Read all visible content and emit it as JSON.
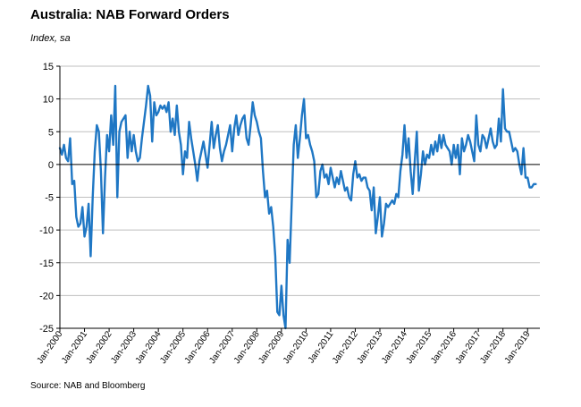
{
  "title": "Australia: NAB Forward Orders",
  "subtitle": "Index, sa",
  "source": "Source: NAB and Bloomberg",
  "colors": {
    "line": "#1f77c4",
    "grid": "#bfbfbf",
    "axis": "#000000"
  },
  "chart_data": {
    "type": "line",
    "title": "Australia: NAB Forward Orders",
    "ylabel": "Index, sa",
    "xlabel": "",
    "ylim": [
      -25,
      15
    ],
    "yticks": [
      15,
      10,
      5,
      0,
      -5,
      -10,
      -15,
      -20,
      -25
    ],
    "grid": true,
    "legend": "none",
    "x_tick_labels": [
      "Jan-2000",
      "Jan-2001",
      "Jan-2002",
      "Jan-2003",
      "Jan-2004",
      "Jan-2005",
      "Jan-2006",
      "Jan-2007",
      "Jan-2008",
      "Jan-2009",
      "Jan-2010",
      "Jan-2011",
      "Jan-2012",
      "Jan-2013",
      "Jan-2014",
      "Jan-2015",
      "Jan-2016",
      "Jan-2017",
      "Jan-2018",
      "Jan-2019"
    ],
    "x_start": "Jan-2000",
    "x_end": "Jun-2019",
    "frequency": "monthly",
    "series": [
      {
        "name": "",
        "values": [
          2.5,
          1.5,
          3,
          1,
          0.5,
          4,
          -3,
          -2.5,
          -8,
          -9.5,
          -9,
          -6.5,
          -11,
          -9.5,
          -6,
          -14,
          -5,
          2,
          6,
          5,
          -1,
          -10.5,
          -2,
          4.5,
          2,
          7.5,
          3,
          12,
          -5,
          5,
          6.5,
          7,
          7.5,
          1,
          5,
          2,
          4.5,
          2,
          0.5,
          1,
          4,
          6.5,
          9,
          12,
          10.5,
          3.5,
          9.5,
          7.5,
          8,
          9,
          8.5,
          9,
          8,
          9.5,
          5,
          7,
          4.5,
          9,
          5,
          3,
          -1.5,
          2,
          1,
          6.5,
          4,
          2,
          0,
          -2.5,
          0.5,
          2,
          3.5,
          1.5,
          -0.5,
          3,
          6.5,
          2.5,
          4.5,
          6,
          2.5,
          0.5,
          2,
          3,
          4.5,
          6,
          2,
          5.5,
          7.5,
          4.5,
          6,
          7,
          7.5,
          4,
          3,
          6,
          9.5,
          7.5,
          6.5,
          5,
          4,
          -1,
          -5,
          -4,
          -7.5,
          -6.5,
          -9.5,
          -14,
          -22.5,
          -23,
          -18.5,
          -23,
          -25,
          -11.5,
          -15,
          -6,
          3,
          6,
          1,
          4,
          7.5,
          10,
          4,
          4.5,
          3,
          2,
          0.5,
          -5,
          -4.5,
          -1,
          0,
          -2,
          -1.5,
          -3,
          -0.5,
          -2,
          -3.5,
          -2,
          -3,
          -1,
          -2.5,
          -4,
          -3.5,
          -5,
          -5.5,
          -1.5,
          0.5,
          -2,
          -1.5,
          -2.5,
          -2,
          -2,
          -3.5,
          -4,
          -7,
          -3.5,
          -10.5,
          -8,
          -5,
          -11,
          -9,
          -6,
          -6.5,
          -6,
          -5.5,
          -6,
          -4.5,
          -5,
          -1,
          1.5,
          6,
          1,
          4,
          -1,
          -4.5,
          0.5,
          5,
          -4,
          -1.5,
          2,
          0,
          1.5,
          1,
          3,
          1.5,
          3.5,
          2,
          4.5,
          2.5,
          4.5,
          3,
          2.5,
          2,
          0,
          3,
          1,
          3,
          -1.5,
          4,
          2,
          3,
          4.5,
          3.5,
          2,
          0.5,
          7.5,
          3,
          2,
          4.5,
          4,
          2.5,
          4,
          5.5,
          3.5,
          2.5,
          3,
          7,
          3.5,
          11.5,
          5.5,
          5,
          5,
          3.5,
          2,
          2.5,
          2,
          0,
          -1.5,
          2.5,
          -2,
          -2,
          -3.5,
          -3.5,
          -3,
          -3
        ]
      }
    ]
  }
}
